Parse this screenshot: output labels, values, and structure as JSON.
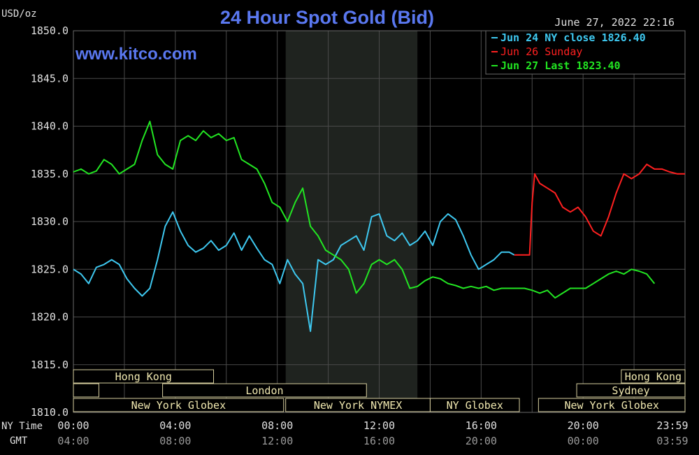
{
  "header": {
    "unit": "USD/oz",
    "title": "24 Hour Spot Gold (Bid)",
    "timestamp": "June 27, 2022 22:16",
    "website": "www.kitco.com"
  },
  "legend": [
    {
      "text": "Jun 24 NY close 1826.40",
      "color": "#3ec8f0"
    },
    {
      "text": "Jun 26 Sunday",
      "color": "#ff2020"
    },
    {
      "text": "Jun 27 Last 1823.40",
      "color": "#22e622"
    }
  ],
  "axis": {
    "y_ticks": [
      "1850.0",
      "1845.0",
      "1840.0",
      "1835.0",
      "1830.0",
      "1825.0",
      "1820.0",
      "1815.0",
      "1810.0"
    ],
    "row1_label": "NY Time",
    "row2_label": "GMT",
    "ny_ticks": [
      "00:00",
      "04:00",
      "08:00",
      "12:00",
      "16:00",
      "20:00",
      "23:59"
    ],
    "gmt_ticks": [
      "04:00",
      "08:00",
      "12:00",
      "16:00",
      "20:00",
      "00:00",
      "03:59"
    ]
  },
  "sessions": [
    {
      "label": "Hong Kong",
      "start": 0,
      "end": 5.5,
      "row": 0
    },
    {
      "label": "Hong Kong",
      "start": 21.5,
      "end": 24,
      "row": 0
    },
    {
      "label": "",
      "start": 0,
      "end": 1,
      "row": 1
    },
    {
      "label": "London",
      "start": 3.5,
      "end": 11.5,
      "row": 1
    },
    {
      "label": "Sydney",
      "start": 19.75,
      "end": 24,
      "row": 1
    },
    {
      "label": "New York Globex",
      "start": 0,
      "end": 8.25,
      "row": 2
    },
    {
      "label": "New York NYMEX",
      "start": 8.33,
      "end": 14.0,
      "row": 2
    },
    {
      "label": "NY Globex",
      "start": 14.0,
      "end": 17.5,
      "row": 2
    },
    {
      "label": "New York Globex",
      "start": 18.25,
      "end": 24,
      "row": 2
    }
  ],
  "chart_data": {
    "type": "line",
    "ylim": [
      1810,
      1850
    ],
    "xlim": [
      0,
      24
    ],
    "grid": true,
    "shaded_range": [
      8.33,
      13.5
    ],
    "series": [
      {
        "name": "Jun 24 NY close 1826.40",
        "color": "#3ec8f0",
        "x": [
          0,
          0.3,
          0.6,
          0.9,
          1.2,
          1.5,
          1.8,
          2.1,
          2.4,
          2.7,
          3.0,
          3.3,
          3.6,
          3.9,
          4.2,
          4.5,
          4.8,
          5.1,
          5.4,
          5.7,
          6.0,
          6.3,
          6.6,
          6.9,
          7.2,
          7.5,
          7.8,
          8.1,
          8.4,
          8.7,
          9.0,
          9.3,
          9.6,
          9.9,
          10.2,
          10.5,
          10.8,
          11.1,
          11.4,
          11.7,
          12.0,
          12.3,
          12.6,
          12.9,
          13.2,
          13.5,
          13.8,
          14.1,
          14.4,
          14.7,
          15.0,
          15.3,
          15.6,
          15.9,
          16.2,
          16.5,
          16.8,
          17.1,
          17.3
        ],
        "y": [
          1825.0,
          1824.5,
          1823.5,
          1825.2,
          1825.5,
          1826.0,
          1825.5,
          1824.0,
          1823.0,
          1822.2,
          1823.0,
          1826.0,
          1829.5,
          1831.0,
          1829.0,
          1827.5,
          1826.8,
          1827.2,
          1828.0,
          1827.0,
          1827.5,
          1828.8,
          1827.0,
          1828.5,
          1827.2,
          1826.0,
          1825.5,
          1823.5,
          1826.0,
          1824.5,
          1823.5,
          1818.5,
          1826.0,
          1825.5,
          1826.0,
          1827.5,
          1828.0,
          1828.5,
          1827.0,
          1830.5,
          1830.8,
          1828.5,
          1828.0,
          1828.8,
          1827.5,
          1828.0,
          1829.0,
          1827.5,
          1830.0,
          1830.8,
          1830.2,
          1828.5,
          1826.5,
          1825.0,
          1825.5,
          1826.0,
          1826.8,
          1826.8,
          1826.5
        ]
      },
      {
        "name": "Jun 26 Sunday",
        "color": "#ff2020",
        "x": [
          17.3,
          17.6,
          17.9,
          18.0,
          18.1,
          18.3,
          18.6,
          18.9,
          19.2,
          19.5,
          19.8,
          20.1,
          20.4,
          20.7,
          21.0,
          21.3,
          21.6,
          21.9,
          22.2,
          22.5,
          22.8,
          23.1,
          23.4,
          23.7,
          24.0
        ],
        "y": [
          1826.5,
          1826.5,
          1826.5,
          1832.0,
          1835.0,
          1834.0,
          1833.5,
          1833.0,
          1831.5,
          1831.0,
          1831.5,
          1830.5,
          1829.0,
          1828.5,
          1830.5,
          1833.0,
          1835.0,
          1834.5,
          1835.0,
          1836.0,
          1835.5,
          1835.5,
          1835.2,
          1835.0,
          1835.0
        ]
      },
      {
        "name": "Jun 27 Last 1823.40",
        "color": "#22e622",
        "x": [
          0,
          0.3,
          0.6,
          0.9,
          1.2,
          1.5,
          1.8,
          2.1,
          2.4,
          2.7,
          3.0,
          3.3,
          3.6,
          3.9,
          4.2,
          4.5,
          4.8,
          5.1,
          5.4,
          5.7,
          6.0,
          6.3,
          6.6,
          6.9,
          7.2,
          7.5,
          7.8,
          8.1,
          8.4,
          8.7,
          9.0,
          9.3,
          9.6,
          9.9,
          10.2,
          10.5,
          10.8,
          11.1,
          11.4,
          11.7,
          12.0,
          12.3,
          12.6,
          12.9,
          13.2,
          13.5,
          13.8,
          14.1,
          14.4,
          14.7,
          15.0,
          15.3,
          15.6,
          15.9,
          16.2,
          16.5,
          16.8,
          17.1,
          17.4,
          17.7,
          18.0,
          18.3,
          18.6,
          18.9,
          19.2,
          19.5,
          19.8,
          20.1,
          20.4,
          20.7,
          21.0,
          21.3,
          21.6,
          21.9,
          22.2,
          22.5,
          22.8
        ],
        "y": [
          1835.2,
          1835.5,
          1835.0,
          1835.3,
          1836.5,
          1836.0,
          1835.0,
          1835.5,
          1836.0,
          1838.5,
          1840.5,
          1837.0,
          1836.0,
          1835.5,
          1838.5,
          1839.0,
          1838.5,
          1839.5,
          1838.8,
          1839.2,
          1838.5,
          1838.8,
          1836.5,
          1836.0,
          1835.5,
          1834.0,
          1832.0,
          1831.5,
          1830.0,
          1832.0,
          1833.5,
          1829.5,
          1828.5,
          1827.0,
          1826.5,
          1826.0,
          1825.0,
          1822.5,
          1823.5,
          1825.5,
          1826.0,
          1825.5,
          1826.0,
          1825.0,
          1823.0,
          1823.2,
          1823.8,
          1824.2,
          1824.0,
          1823.5,
          1823.3,
          1823.0,
          1823.2,
          1823.0,
          1823.2,
          1822.8,
          1823.0,
          1823.0,
          1823.0,
          1823.0,
          1822.8,
          1822.5,
          1822.8,
          1822.0,
          1822.5,
          1823.0,
          1823.0,
          1823.0,
          1823.5,
          1824.0,
          1824.5,
          1824.8,
          1824.5,
          1825.0,
          1824.8,
          1824.5,
          1823.5
        ]
      }
    ]
  }
}
